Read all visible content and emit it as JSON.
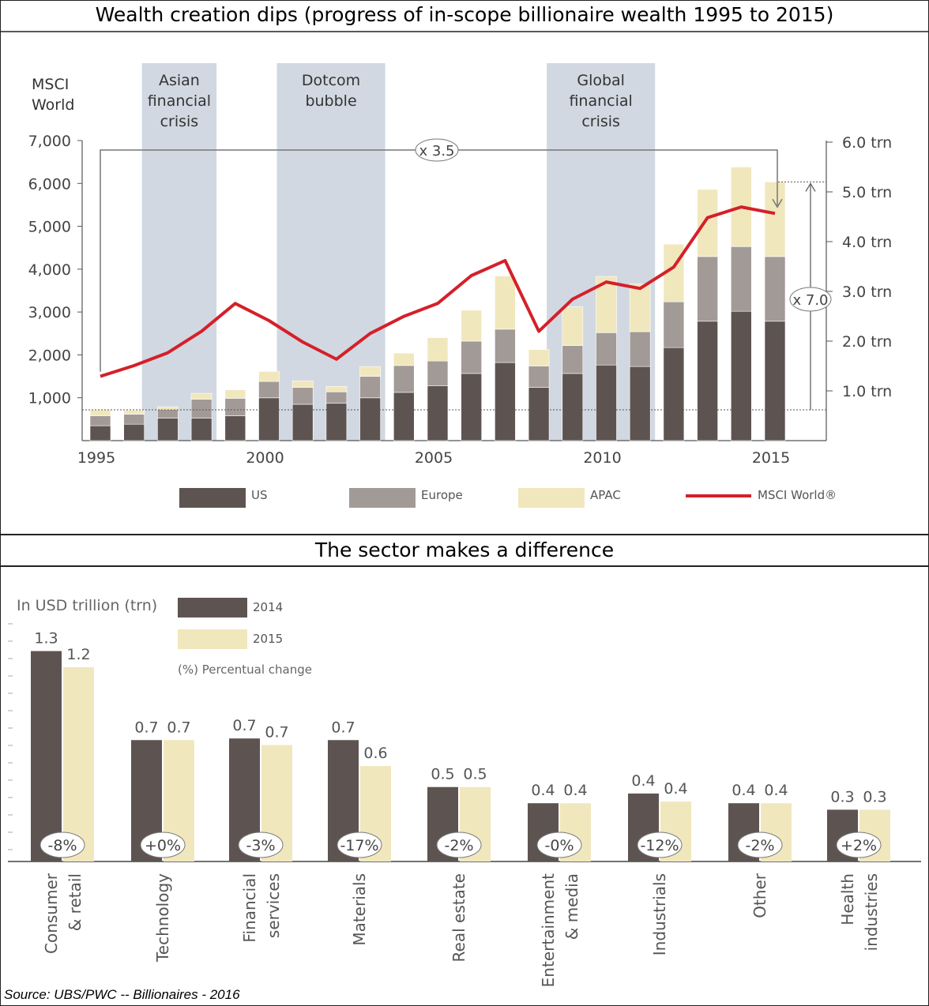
{
  "source": "Source: UBS/PWC -- Billionaires - 2016",
  "chart_data": [
    {
      "type": "bar",
      "title": "Wealth creation dips (progress of in-scope billionaire wealth 1995 to 2015)",
      "left_axis_label": [
        "MSCI",
        "World"
      ],
      "left_ticks": [
        "1,000",
        "2,000",
        "3,000",
        "4,000",
        "5,000",
        "6,000",
        "7,000"
      ],
      "left_tick_values": [
        1000,
        2000,
        3000,
        4000,
        5000,
        6000,
        7000
      ],
      "right_ticks": [
        "1.0 trn",
        "2.0 trn",
        "3.0 trn",
        "4.0 trn",
        "5.0 trn",
        "6.0 trn"
      ],
      "right_tick_values": [
        1,
        2,
        3,
        4,
        5,
        6
      ],
      "x_ticks": [
        "1995",
        "2000",
        "2005",
        "2010",
        "2015"
      ],
      "x_tick_years": [
        1995,
        2000,
        2005,
        2010,
        2015
      ],
      "years": [
        1995,
        1996,
        1997,
        1998,
        1999,
        2000,
        2001,
        2002,
        2003,
        2004,
        2005,
        2006,
        2007,
        2008,
        2009,
        2010,
        2011,
        2012,
        2013,
        2014,
        2015
      ],
      "series": [
        {
          "name": "US",
          "color": "#5d5452",
          "values": [
            0.3,
            0.33,
            0.45,
            0.45,
            0.5,
            0.86,
            0.73,
            0.75,
            0.86,
            0.97,
            1.1,
            1.35,
            1.57,
            1.07,
            1.35,
            1.52,
            1.49,
            1.87,
            2.4,
            2.6,
            2.4
          ]
        },
        {
          "name": "Europe",
          "color": "#a29a97",
          "values": [
            0.2,
            0.2,
            0.18,
            0.38,
            0.35,
            0.33,
            0.34,
            0.23,
            0.43,
            0.54,
            0.5,
            0.65,
            0.67,
            0.43,
            0.56,
            0.65,
            0.7,
            0.92,
            1.3,
            1.3,
            1.3
          ]
        },
        {
          "name": "APAC",
          "color": "#f1e7bd",
          "values": [
            0.12,
            0.08,
            0.05,
            0.12,
            0.17,
            0.2,
            0.13,
            0.11,
            0.2,
            0.25,
            0.47,
            0.62,
            1.07,
            0.33,
            0.78,
            1.13,
            0.96,
            1.16,
            1.35,
            1.6,
            1.5
          ]
        },
        {
          "name": "MSCI World®",
          "color": "#d4202a",
          "type": "line",
          "values": [
            1500,
            1750,
            2050,
            2550,
            3200,
            2800,
            2300,
            1900,
            2500,
            2900,
            3200,
            3850,
            4200,
            2550,
            3300,
            3700,
            3550,
            4050,
            5200,
            5450,
            5300
          ]
        }
      ],
      "left_ylim": [
        0,
        7000
      ],
      "right_ylim": [
        0,
        6
      ],
      "shaded_periods": [
        {
          "label": [
            "Asian",
            "financial",
            "crisis"
          ],
          "from": 1996,
          "to": 1998
        },
        {
          "label": [
            "Dotcom",
            "bubble"
          ],
          "from": 2000,
          "to": 2003
        },
        {
          "label": [
            "Global",
            "financial",
            "crisis"
          ],
          "from": 2008,
          "to": 2011
        }
      ],
      "annotations": {
        "msci_multiple": "x 3.5",
        "wealth_multiple": "x 7.0"
      },
      "legend": [
        "US",
        "Europe",
        "APAC",
        "MSCI World®"
      ],
      "legend_position": "bottom"
    },
    {
      "type": "bar",
      "title": "The sector makes a difference",
      "unit_label": "In USD trillion (trn)",
      "legend": [
        {
          "name": "2014",
          "color": "#5d5452"
        },
        {
          "name": "2015",
          "color": "#f1e7bd"
        }
      ],
      "legend_note": "(%) Percentual change",
      "legend_position": "top-left",
      "categories": [
        [
          "Consumer",
          "& retail"
        ],
        [
          "Technology"
        ],
        [
          "Financial",
          "services"
        ],
        [
          "Materials"
        ],
        [
          "Real estate"
        ],
        [
          "Entertainment",
          "& media"
        ],
        [
          "Industrials"
        ],
        [
          "Other"
        ],
        [
          "Health",
          "industries"
        ]
      ],
      "series": [
        {
          "name": "2014",
          "values": [
            1.3,
            0.7,
            0.7,
            0.7,
            0.5,
            0.4,
            0.4,
            0.4,
            0.3
          ],
          "heights": [
            1.3,
            0.75,
            0.76,
            0.75,
            0.46,
            0.36,
            0.42,
            0.36,
            0.32
          ]
        },
        {
          "name": "2015",
          "values": [
            1.2,
            0.7,
            0.7,
            0.6,
            0.5,
            0.4,
            0.4,
            0.4,
            0.3
          ],
          "heights": [
            1.2,
            0.75,
            0.72,
            0.59,
            0.46,
            0.36,
            0.37,
            0.36,
            0.32
          ]
        }
      ],
      "changes": [
        "-8%",
        "+0%",
        "-3%",
        "-17%",
        "-2%",
        "-0%",
        "-12%",
        "-2%",
        "+2%"
      ]
    }
  ]
}
